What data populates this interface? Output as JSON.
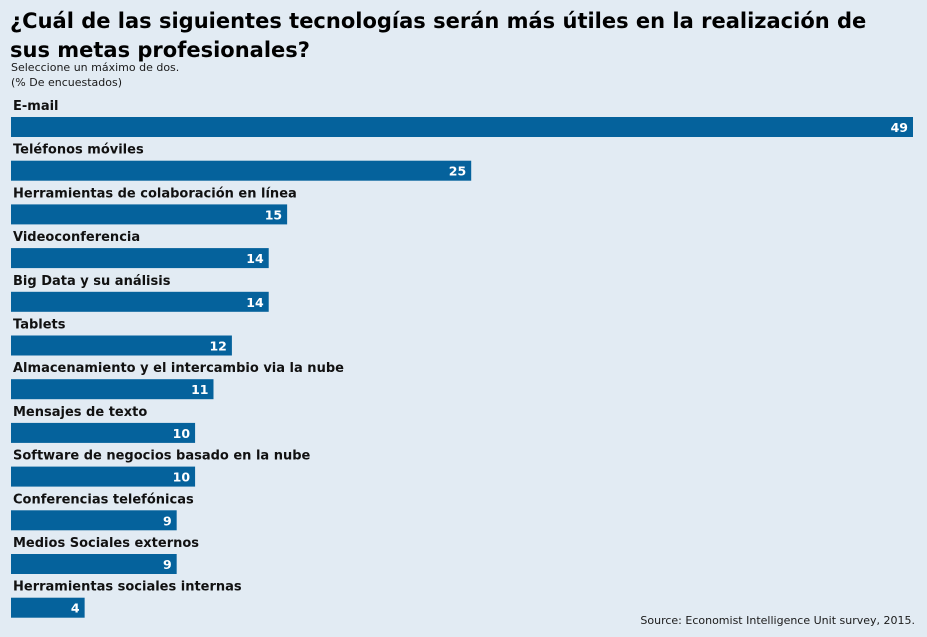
{
  "chart_data": {
    "type": "bar",
    "orientation": "horizontal",
    "title": "¿Cuál de las siguientes tecnologías serán más útiles en la realización de sus metas profesionales?",
    "subtitle_lines": [
      "Seleccione un máximo de dos.",
      "(% De encuestados)"
    ],
    "categories": [
      "E-mail",
      "Teléfonos móviles",
      "Herramientas de colaboración en línea",
      "Videoconferencia",
      "Big Data y su análisis",
      "Tablets",
      "Almacenamiento y el intercambio via la nube",
      "Mensajes de texto",
      "Software de negocios basado en la nube",
      "Conferencias telefónicas",
      "Medios Sociales externos",
      "Herramientas sociales internas"
    ],
    "values": [
      49,
      25,
      15,
      14,
      14,
      12,
      11,
      10,
      10,
      9,
      9,
      4
    ],
    "xlim": [
      0,
      49
    ],
    "grid": false,
    "legend": "none",
    "bar_color": "#05629c",
    "background_color": "#e2ebf3",
    "source": "Source: Economist Intelligence Unit survey, 2015."
  }
}
